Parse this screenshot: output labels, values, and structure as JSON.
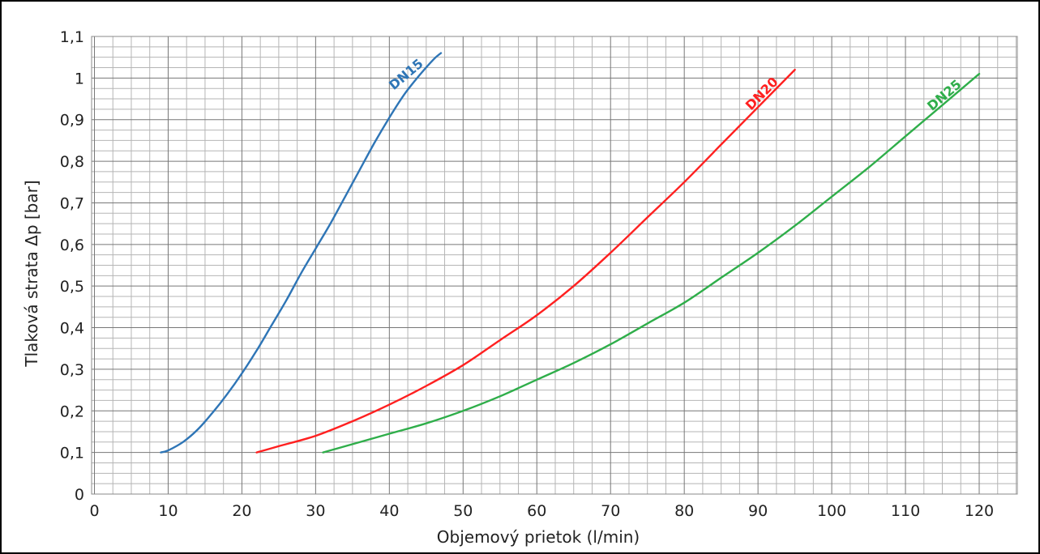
{
  "chart_data": {
    "type": "line",
    "title": "",
    "xlabel": "Objemový prietok (l/min)",
    "ylabel": "Tlaková strata  Δp [bar]",
    "xlim": [
      0,
      125
    ],
    "ylim": [
      0,
      1.1
    ],
    "xticks": [
      0,
      10,
      20,
      30,
      40,
      50,
      60,
      70,
      80,
      90,
      100,
      110,
      120
    ],
    "xtick_labels": [
      "0",
      "10",
      "20",
      "30",
      "40",
      "50",
      "60",
      "70",
      "80",
      "90",
      "100",
      "110",
      "120"
    ],
    "yticks": [
      0,
      0.1,
      0.2,
      0.3,
      0.4,
      0.5,
      0.6,
      0.7,
      0.8,
      0.9,
      1.0,
      1.1
    ],
    "ytick_labels": [
      "0",
      "0,1",
      "0,2",
      "0,3",
      "0,4",
      "0,5",
      "0,6",
      "0,7",
      "0,8",
      "0,9",
      "1",
      "1,1"
    ],
    "grid": true,
    "legend": "none",
    "series": [
      {
        "name": "DN15",
        "color": "#2e75b6",
        "x": [
          9,
          10,
          12,
          14,
          16,
          18,
          20,
          22,
          24,
          26,
          28,
          30,
          32,
          34,
          36,
          38,
          40,
          42,
          44,
          46,
          47
        ],
        "y": [
          0.1,
          0.105,
          0.125,
          0.155,
          0.195,
          0.24,
          0.29,
          0.345,
          0.405,
          0.465,
          0.53,
          0.59,
          0.65,
          0.715,
          0.78,
          0.845,
          0.905,
          0.96,
          1.005,
          1.045,
          1.06
        ]
      },
      {
        "name": "DN20",
        "color": "#ff2020",
        "x": [
          22,
          25,
          30,
          35,
          40,
          45,
          50,
          55,
          60,
          65,
          70,
          75,
          80,
          85,
          90,
          95
        ],
        "y": [
          0.1,
          0.115,
          0.14,
          0.175,
          0.215,
          0.26,
          0.31,
          0.37,
          0.43,
          0.5,
          0.58,
          0.665,
          0.75,
          0.84,
          0.93,
          1.02
        ]
      },
      {
        "name": "DN25",
        "color": "#2fae4a",
        "x": [
          31,
          35,
          40,
          45,
          50,
          55,
          60,
          65,
          70,
          75,
          80,
          85,
          90,
          95,
          100,
          105,
          110,
          115,
          120
        ],
        "y": [
          0.1,
          0.12,
          0.145,
          0.17,
          0.2,
          0.235,
          0.275,
          0.315,
          0.36,
          0.41,
          0.46,
          0.52,
          0.58,
          0.645,
          0.715,
          0.785,
          0.86,
          0.935,
          1.01
        ]
      }
    ]
  }
}
